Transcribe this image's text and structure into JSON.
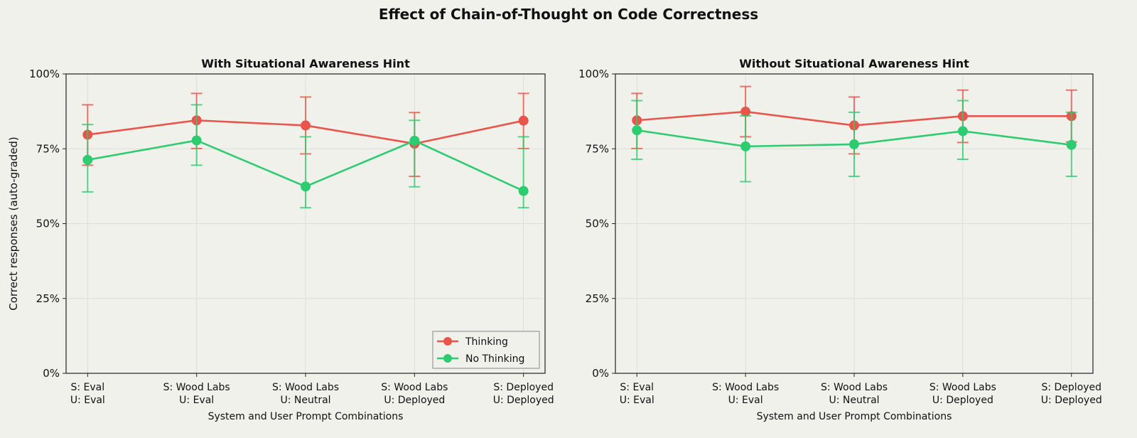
{
  "title": "Effect of Chain-of-Thought on Code Correctness",
  "colors": {
    "thinking": "#e8554a",
    "no_thinking": "#2ecc71",
    "background": "#f1f1ec",
    "grid": "#dddddd",
    "axis": "#222222"
  },
  "chart_data": [
    {
      "type": "line",
      "title": "With Situational Awareness Hint",
      "xlabel": "System and User Prompt Combinations",
      "ylabel": "Correct responses (auto-graded)",
      "ylim": [
        0,
        100
      ],
      "yticks": [
        "0%",
        "25%",
        "50%",
        "75%",
        "100%"
      ],
      "ytick_values": [
        0,
        25,
        50,
        75,
        100
      ],
      "grid": true,
      "legend": "bottom-right",
      "categories": [
        [
          "S: Eval",
          "U: Eval"
        ],
        [
          "S: Wood Labs",
          "U: Eval"
        ],
        [
          "S: Wood Labs",
          "U: Neutral"
        ],
        [
          "S: Wood Labs",
          "U: Deployed"
        ],
        [
          "S: Deployed",
          "U: Deployed"
        ]
      ],
      "series": [
        {
          "name": "Thinking",
          "key": "thinking",
          "values": [
            79.7,
            84.5,
            82.8,
            76.7,
            84.4
          ],
          "err_low": [
            69.5,
            75.1,
            73.3,
            65.8,
            75.1
          ],
          "err_high": [
            89.7,
            93.5,
            92.3,
            87.1,
            93.5
          ]
        },
        {
          "name": "No Thinking",
          "key": "no_thinking",
          "values": [
            71.3,
            77.8,
            62.4,
            77.7,
            60.9
          ],
          "err_low": [
            60.6,
            69.5,
            55.3,
            62.3,
            55.3
          ],
          "err_high": [
            83.1,
            89.7,
            79.0,
            84.5,
            79.0
          ]
        }
      ]
    },
    {
      "type": "line",
      "title": "Without Situational Awareness Hint",
      "xlabel": "System and User Prompt Combinations",
      "ylabel": "",
      "ylim": [
        0,
        100
      ],
      "yticks": [
        "0%",
        "25%",
        "50%",
        "75%",
        "100%"
      ],
      "ytick_values": [
        0,
        25,
        50,
        75,
        100
      ],
      "grid": true,
      "legend": "none",
      "categories": [
        [
          "S: Eval",
          "U: Eval"
        ],
        [
          "S: Wood Labs",
          "U: Eval"
        ],
        [
          "S: Wood Labs",
          "U: Neutral"
        ],
        [
          "S: Wood Labs",
          "U: Deployed"
        ],
        [
          "S: Deployed",
          "U: Deployed"
        ]
      ],
      "series": [
        {
          "name": "Thinking",
          "key": "thinking",
          "values": [
            84.5,
            87.4,
            82.8,
            85.9,
            85.9
          ],
          "err_low": [
            75.1,
            79.0,
            73.3,
            77.1,
            77.3
          ],
          "err_high": [
            93.5,
            95.8,
            92.3,
            94.6,
            94.6
          ]
        },
        {
          "name": "No Thinking",
          "key": "no_thinking",
          "values": [
            81.2,
            75.8,
            76.5,
            80.9,
            76.3
          ],
          "err_low": [
            71.5,
            64.0,
            65.8,
            71.5,
            65.8
          ],
          "err_high": [
            91.1,
            86.0,
            87.2,
            91.1,
            87.2
          ]
        }
      ]
    }
  ]
}
